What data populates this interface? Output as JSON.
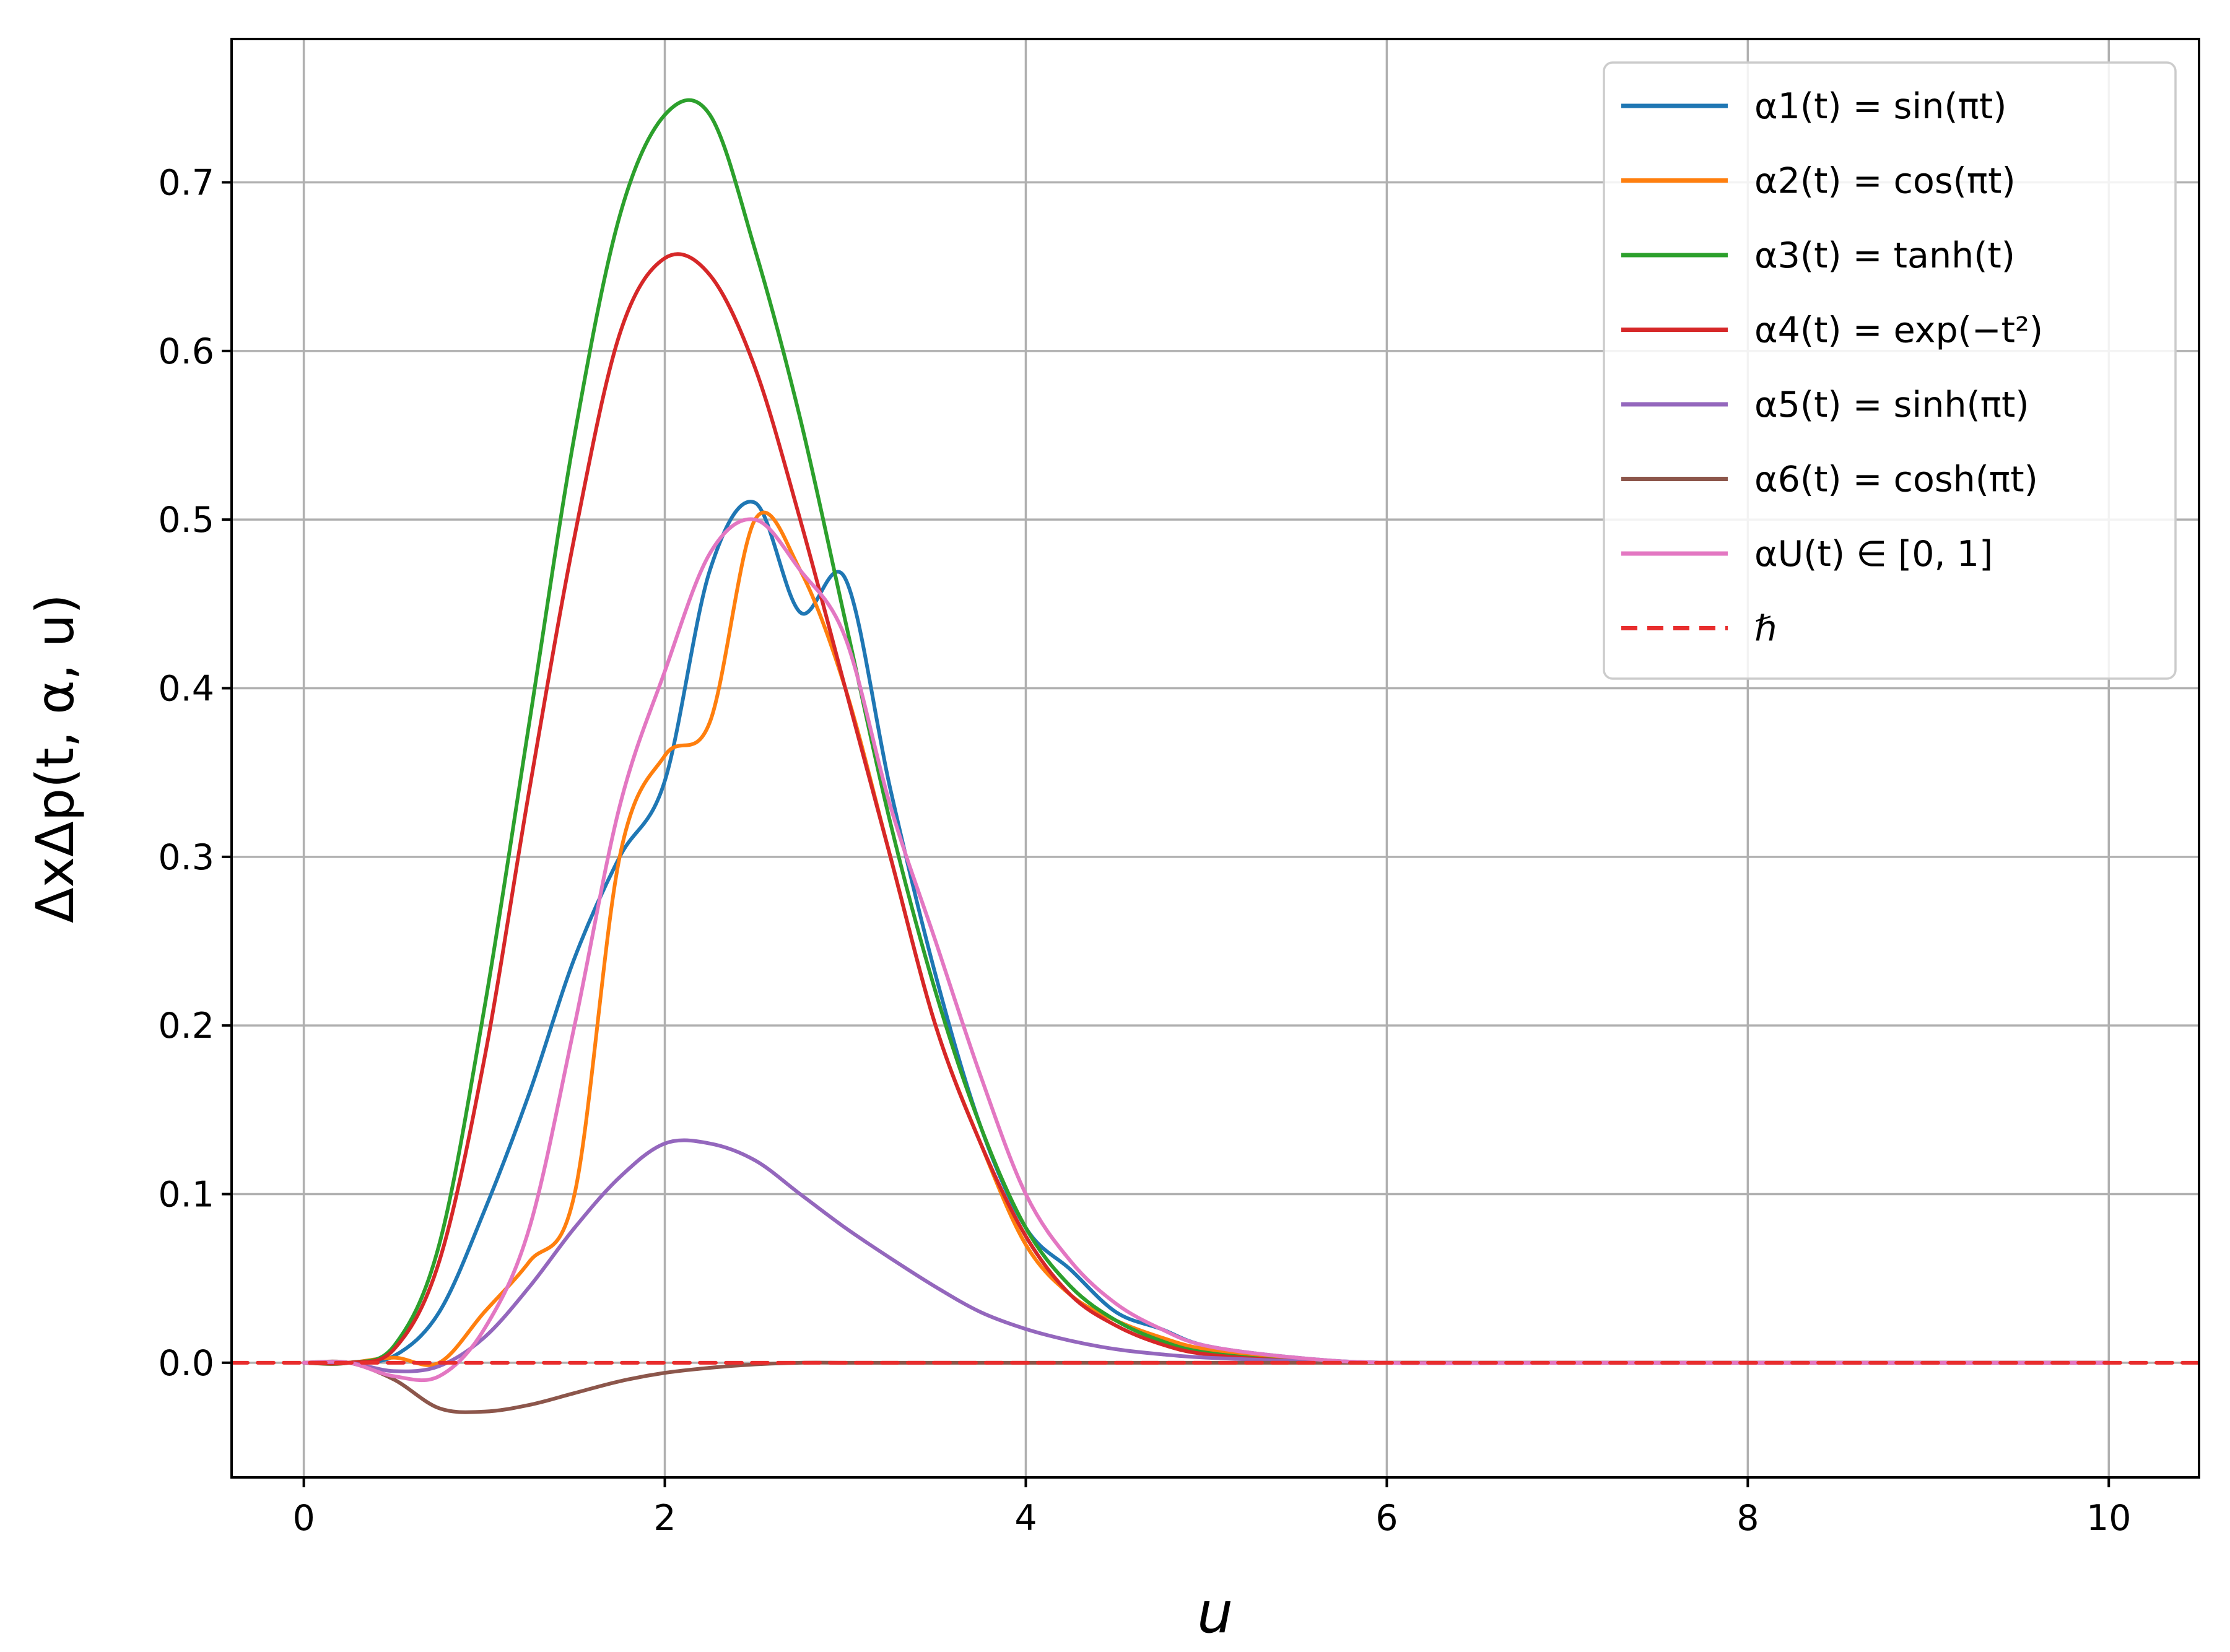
{
  "chart_data": {
    "type": "line",
    "title": "",
    "xlabel": "u",
    "ylabel": "ΔxΔp(t, α, u)",
    "xlim": [
      -0.4,
      10.5
    ],
    "ylim": [
      -0.068,
      0.785
    ],
    "xticks": [
      0,
      2,
      4,
      6,
      8,
      10
    ],
    "yticks": [
      0.0,
      0.1,
      0.2,
      0.3,
      0.4,
      0.5,
      0.6,
      0.7
    ],
    "grid": true,
    "legend_position": "upper right",
    "x": [
      0.0,
      0.25,
      0.5,
      0.75,
      1.0,
      1.25,
      1.5,
      1.75,
      2.0,
      2.25,
      2.5,
      2.75,
      3.0,
      3.25,
      3.5,
      3.75,
      4.0,
      4.25,
      4.5,
      4.75,
      5.0,
      5.5,
      6.0,
      7.0,
      8.0,
      9.0,
      10.0
    ],
    "series": [
      {
        "name": "α1(t) = sin(πt)",
        "color": "#1f77b4",
        "values": [
          0.0,
          0.0,
          0.004,
          0.03,
          0.09,
          0.16,
          0.24,
          0.3,
          0.345,
          0.47,
          0.51,
          0.445,
          0.465,
          0.34,
          0.23,
          0.14,
          0.08,
          0.055,
          0.03,
          0.02,
          0.01,
          0.003,
          0.0,
          0.0,
          0.0,
          0.0,
          0.0
        ]
      },
      {
        "name": "α2(t) = cos(πt)",
        "color": "#ff7f0e",
        "values": [
          0.0,
          0.0,
          0.003,
          0.0,
          0.03,
          0.06,
          0.1,
          0.3,
          0.36,
          0.38,
          0.5,
          0.47,
          0.4,
          0.3,
          0.2,
          0.13,
          0.07,
          0.04,
          0.025,
          0.015,
          0.008,
          0.002,
          0.0,
          0.0,
          0.0,
          0.0,
          0.0
        ]
      },
      {
        "name": "α3(t) = tanh(t)",
        "color": "#2ca02c",
        "values": [
          0.0,
          0.0,
          0.01,
          0.07,
          0.21,
          0.38,
          0.55,
          0.68,
          0.74,
          0.74,
          0.66,
          0.56,
          0.44,
          0.32,
          0.22,
          0.14,
          0.08,
          0.045,
          0.025,
          0.013,
          0.006,
          0.001,
          0.0,
          0.0,
          0.0,
          0.0,
          0.0
        ]
      },
      {
        "name": "α4(t) = exp(−t²)",
        "color": "#d62728",
        "values": [
          0.0,
          0.0,
          0.008,
          0.06,
          0.18,
          0.34,
          0.49,
          0.61,
          0.655,
          0.645,
          0.59,
          0.5,
          0.4,
          0.3,
          0.2,
          0.13,
          0.075,
          0.04,
          0.022,
          0.011,
          0.005,
          0.001,
          0.0,
          0.0,
          0.0,
          0.0,
          0.0
        ]
      },
      {
        "name": "α5(t) = sinh(πt)",
        "color": "#9467bd",
        "values": [
          0.0,
          0.0,
          -0.005,
          -0.002,
          0.015,
          0.045,
          0.08,
          0.11,
          0.13,
          0.13,
          0.12,
          0.1,
          0.08,
          0.062,
          0.045,
          0.03,
          0.02,
          0.013,
          0.008,
          0.005,
          0.003,
          0.001,
          0.0,
          0.0,
          0.0,
          0.0,
          0.0
        ]
      },
      {
        "name": "α6(t) = cosh(πt)",
        "color": "#8c564b",
        "values": [
          0.0,
          0.0,
          -0.01,
          -0.027,
          -0.029,
          -0.025,
          -0.018,
          -0.011,
          -0.006,
          -0.003,
          -0.001,
          0.0,
          0.0,
          0.0,
          0.0,
          0.0,
          0.0,
          0.0,
          0.0,
          0.0,
          0.0,
          0.0,
          0.0,
          0.0,
          0.0,
          0.0,
          0.0
        ]
      },
      {
        "name": "αU(t) ∈ [0, 1]",
        "color": "#e377c2",
        "values": [
          0.0,
          0.0,
          -0.008,
          -0.008,
          0.02,
          0.08,
          0.2,
          0.33,
          0.41,
          0.48,
          0.5,
          0.47,
          0.43,
          0.33,
          0.25,
          0.17,
          0.1,
          0.06,
          0.035,
          0.02,
          0.01,
          0.003,
          0.0,
          0.0,
          0.0,
          0.0,
          0.0
        ]
      },
      {
        "name": "ℏ",
        "color": "#e82d2d",
        "dashed": true,
        "values": [
          0.0,
          0.0,
          0.0,
          0.0,
          0.0,
          0.0,
          0.0,
          0.0,
          0.0,
          0.0,
          0.0,
          0.0,
          0.0,
          0.0,
          0.0,
          0.0,
          0.0,
          0.0,
          0.0,
          0.0,
          0.0,
          0.0,
          0.0,
          0.0,
          0.0,
          0.0,
          0.0
        ]
      }
    ]
  }
}
